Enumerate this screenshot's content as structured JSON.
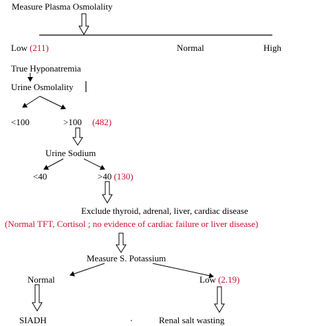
{
  "nodes": {
    "measure_plasma": "Measure Plasma Osmolality",
    "low": "Low",
    "low_count": "(211)",
    "normal_top": "Normal",
    "high": "High",
    "true_hypo": "True Hyponatremia",
    "urine_osm": "Urine Osmolality",
    "lt100": "<100",
    "gt100": ">100",
    "gt100_count": "(482)",
    "urine_sodium": "Urine Sodium",
    "lt40": "<40",
    "gt40": ">40",
    "gt40_count": "(130)",
    "exclude": "Exclude thyroid, adrenal, liver, cardiac disease",
    "exclude_note": "(Normal TFT,  Cortisol ; no evidence of cardiac failure or liver disease)",
    "measure_k": "Measure S. Potassium",
    "normal_k": "Normal",
    "low_k": "Low",
    "low_k_value": "(2.19)",
    "siadh": "SIADH",
    "renal": "Renal salt wasting"
  },
  "colors": {
    "text": "#000000",
    "highlight": "#c8102e"
  }
}
